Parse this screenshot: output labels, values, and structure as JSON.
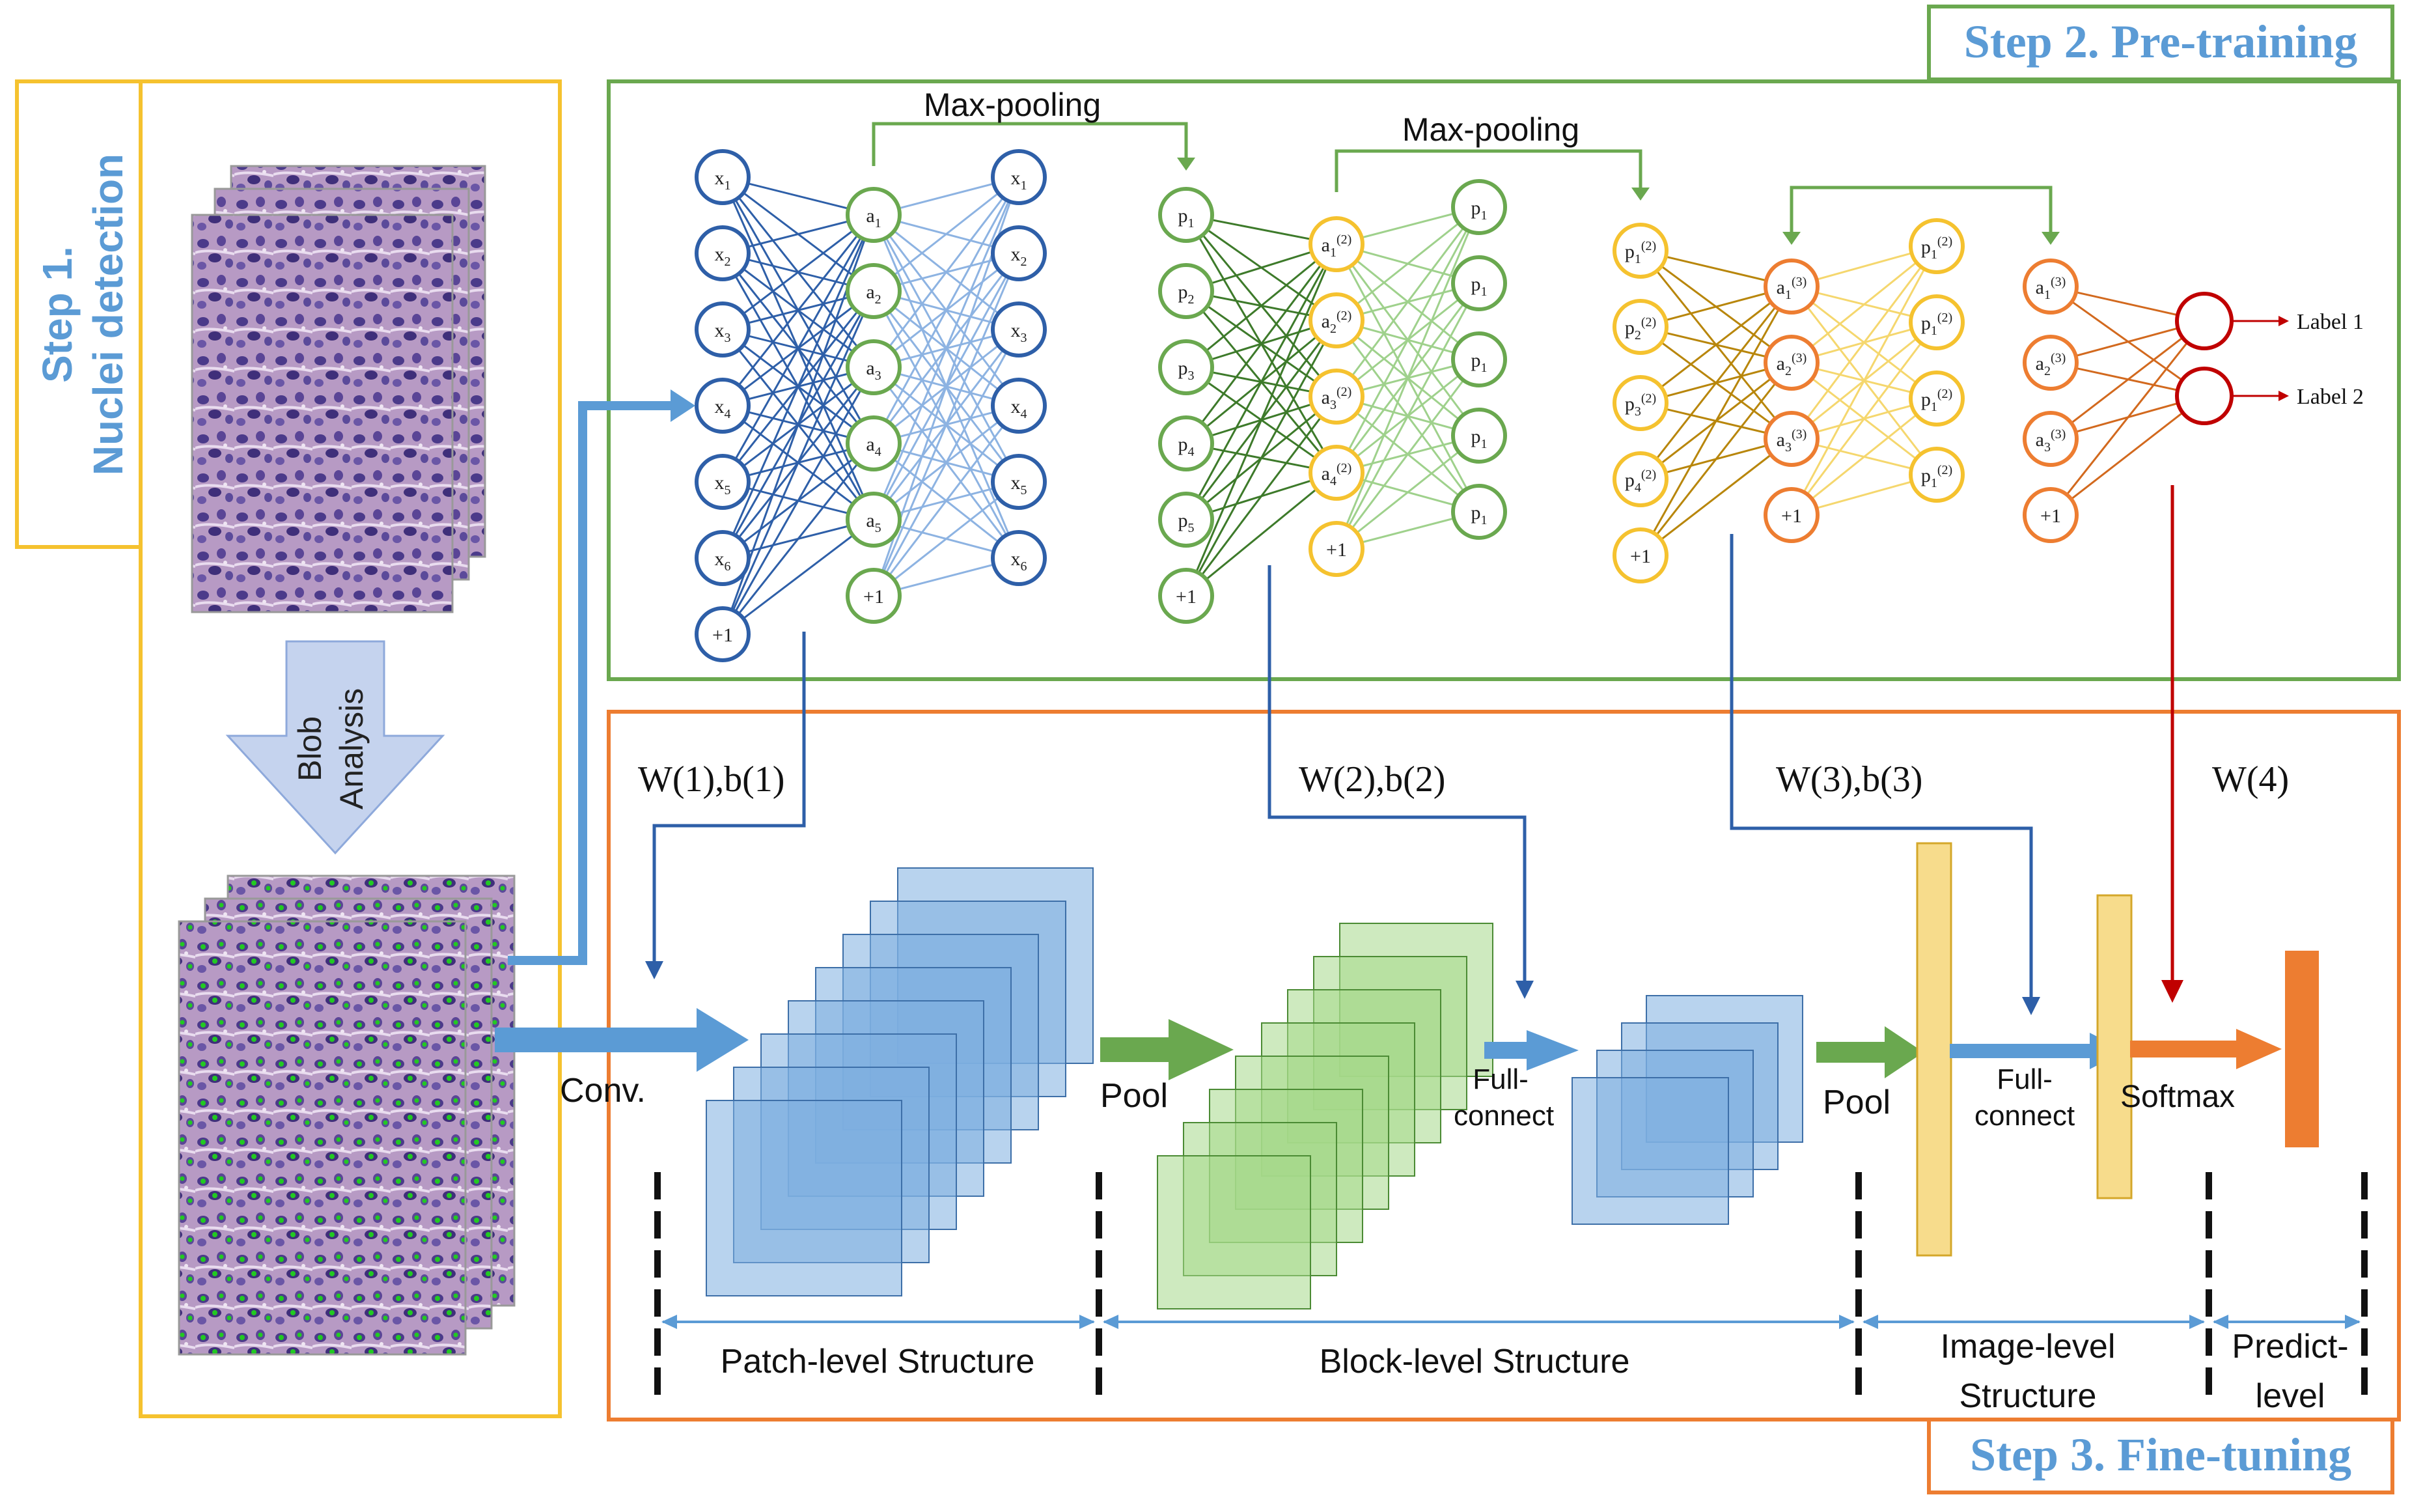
{
  "colors": {
    "yellow": "#f5c22f",
    "blue": "#2e5fa8",
    "blue_light": "#5b9bd5",
    "green": "#6aa84f",
    "green_dark": "#3d7a2a",
    "orange": "#ed7d31",
    "red": "#c00000",
    "title_blue": "#5b9bd5"
  },
  "step1": {
    "title": "Step 1.",
    "subtitle": "Nuclei detection",
    "blob": "Blob",
    "analysis": "Analysis"
  },
  "step2": {
    "title": "Step 2. Pre-training"
  },
  "step3": {
    "title": "Step 3. Fine-tuning"
  },
  "pretrain": {
    "maxpool1": "Max-pooling",
    "maxpool2": "Max-pooling",
    "layer_x": [
      "x1",
      "x2",
      "x3",
      "x4",
      "x5",
      "x6",
      "+1"
    ],
    "layer_a1": [
      "a1",
      "a2",
      "a3",
      "a4",
      "a5",
      "+1"
    ],
    "layer_xhat": [
      "x1",
      "x2",
      "x3",
      "x4",
      "x5",
      "x6"
    ],
    "layer_p": [
      "p1",
      "p2",
      "p3",
      "p4",
      "p5",
      "+1"
    ],
    "layer_a2": [
      "a1(2)",
      "a2(2)",
      "a3(2)",
      "a4(2)",
      "+1"
    ],
    "layer_phat": [
      "p1",
      "p1",
      "p1",
      "p1",
      "p1"
    ],
    "layer_p2": [
      "p1(2)",
      "p2(2)",
      "p3(2)",
      "p4(2)",
      "+1"
    ],
    "layer_a3": [
      "a1(3)",
      "a2(3)",
      "a3(3)",
      "+1"
    ],
    "layer_p2hat": [
      "p1(2)",
      "p1(2)",
      "p1(2)",
      "p1(2)"
    ],
    "layer_a3b": [
      "a1(3)",
      "a2(3)",
      "a3(3)",
      "+1"
    ],
    "label1": "Label 1",
    "label2": "Label 2"
  },
  "finetune": {
    "w1": "W(1),b(1)",
    "w2": "W(2),b(2)",
    "w3": "W(3),b(3)",
    "w4": "W(4)",
    "conv": "Conv.",
    "pool1": "Pool",
    "fullconnect1": "Full-connect",
    "pool2": "Pool",
    "fullconnect2": "Full-connect",
    "softmax": "Softmax",
    "patch_level": "Patch-level Structure",
    "block_level": "Block-level Structure",
    "image_level": "Image-level Structure",
    "predict_level": "Predict-level"
  }
}
